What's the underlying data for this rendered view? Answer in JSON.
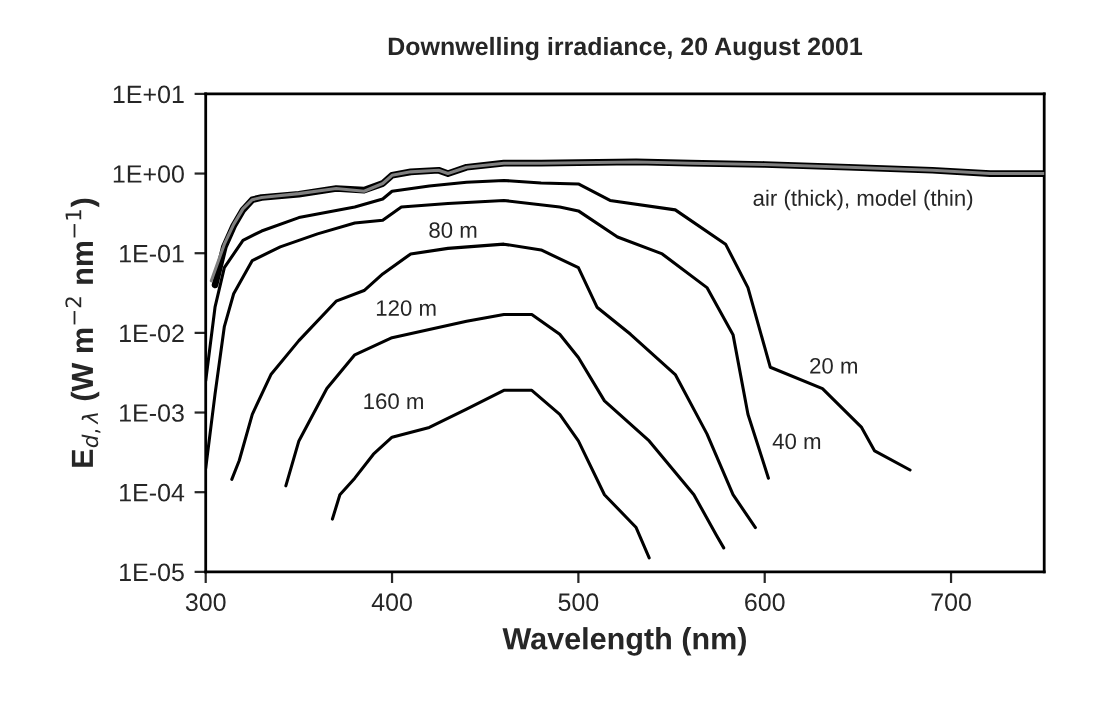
{
  "chart_data": {
    "type": "line",
    "title": "Downwelling irradiance, 20 August 2001",
    "xlabel": "Wavelength (nm)",
    "ylabel": "E$_{d,λ}$ (W m$^{−2}$ nm$^{−1}$)",
    "log": "y",
    "grid": false,
    "legend": false,
    "marker": "none",
    "line_style": "solid",
    "xlim": [
      300,
      750
    ],
    "xticks": [
      300,
      400,
      500,
      600,
      700
    ],
    "ylim": [
      1e-05,
      10
    ],
    "yticks": [
      {
        "value": 1e-05,
        "label": "1E-05"
      },
      {
        "value": 0.0001,
        "label": "1E-04"
      },
      {
        "value": 0.001,
        "label": "1E-03"
      },
      {
        "value": 0.01,
        "label": "1E-02"
      },
      {
        "value": 0.1,
        "label": "1E-01"
      },
      {
        "value": 1,
        "label": "1E+00"
      },
      {
        "value": 10,
        "label": "1E+01"
      }
    ],
    "series": [
      {
        "color": "#000000",
        "x": [
          305,
          310,
          315,
          320,
          325,
          330,
          350,
          370,
          385,
          395,
          400,
          410,
          425,
          430,
          440,
          460,
          480,
          500,
          531,
          560,
          600,
          645,
          690,
          721,
          750
        ],
        "values": [
          0.04,
          0.12,
          0.22,
          0.35,
          0.47,
          0.5,
          0.55,
          0.65,
          0.62,
          0.75,
          0.95,
          1.05,
          1.1,
          1.0,
          1.2,
          1.35,
          1.35,
          1.37,
          1.4,
          1.35,
          1.3,
          1.2,
          1.1,
          1.0,
          1.0
        ]
      },
      {
        "color": "#808080",
        "x": [
          303,
          310,
          315,
          320,
          325,
          330,
          350,
          370,
          385,
          395,
          400,
          410,
          425,
          430,
          440,
          460,
          480,
          500,
          531,
          560,
          600,
          645,
          690,
          721,
          750
        ],
        "values": [
          0.045,
          0.13,
          0.23,
          0.36,
          0.47,
          0.5,
          0.56,
          0.65,
          0.6,
          0.75,
          0.95,
          1.05,
          1.1,
          1.0,
          1.2,
          1.35,
          1.35,
          1.37,
          1.4,
          1.35,
          1.3,
          1.2,
          1.1,
          1.0,
          1.0
        ]
      },
      {
        "color": "#000000",
        "x": [
          300,
          305,
          310,
          320,
          330,
          350,
          380,
          395,
          400,
          420,
          440,
          460,
          480,
          500,
          517,
          552,
          579,
          591,
          603,
          631,
          652,
          659,
          678
        ],
        "values": [
          0.0025,
          0.021,
          0.066,
          0.145,
          0.19,
          0.28,
          0.38,
          0.48,
          0.6,
          0.7,
          0.78,
          0.82,
          0.76,
          0.74,
          0.46,
          0.35,
          0.13,
          0.037,
          0.0037,
          0.002,
          0.00065,
          0.00033,
          0.00019
        ]
      },
      {
        "color": "#000000",
        "x": [
          300,
          305,
          310,
          315,
          325,
          340,
          360,
          380,
          395,
          405,
          430,
          460,
          490,
          500,
          521,
          545,
          569,
          583,
          591,
          602
        ],
        "values": [
          0.0002,
          0.0017,
          0.012,
          0.031,
          0.081,
          0.12,
          0.175,
          0.24,
          0.26,
          0.38,
          0.42,
          0.46,
          0.38,
          0.34,
          0.16,
          0.098,
          0.037,
          0.0095,
          0.00095,
          0.00015
        ]
      },
      {
        "color": "#000000",
        "x": [
          314,
          318,
          325,
          335,
          350,
          370,
          385,
          395,
          410,
          430,
          460,
          480,
          500,
          510,
          528,
          552,
          569,
          583,
          595
        ],
        "values": [
          0.000145,
          0.00025,
          0.00095,
          0.003,
          0.008,
          0.025,
          0.034,
          0.055,
          0.098,
          0.115,
          0.13,
          0.11,
          0.066,
          0.021,
          0.0096,
          0.003,
          0.00054,
          9.3e-05,
          3.6e-05
        ]
      },
      {
        "color": "#000000",
        "x": [
          343,
          350,
          365,
          380,
          400,
          420,
          440,
          460,
          475,
          490,
          500,
          514,
          538,
          562,
          574,
          578
        ],
        "values": [
          0.00012,
          0.00044,
          0.002,
          0.0053,
          0.0087,
          0.011,
          0.014,
          0.017,
          0.017,
          0.0096,
          0.0049,
          0.0014,
          0.00044,
          9.3e-05,
          2.9e-05,
          2e-05
        ]
      },
      {
        "color": "#000000",
        "x": [
          368,
          372,
          380,
          390,
          400,
          420,
          440,
          460,
          475,
          490,
          500,
          514,
          531,
          538
        ],
        "values": [
          4.6e-05,
          9.3e-05,
          0.00015,
          0.0003,
          0.00049,
          0.00065,
          0.0011,
          0.0019,
          0.0019,
          0.00095,
          0.00044,
          9.3e-05,
          3.6e-05,
          1.5e-05
        ]
      }
    ],
    "annotations": [
      "air (thick), model (thin)",
      "80 m",
      "120 m",
      "160 m",
      "20 m",
      "40 m"
    ]
  }
}
